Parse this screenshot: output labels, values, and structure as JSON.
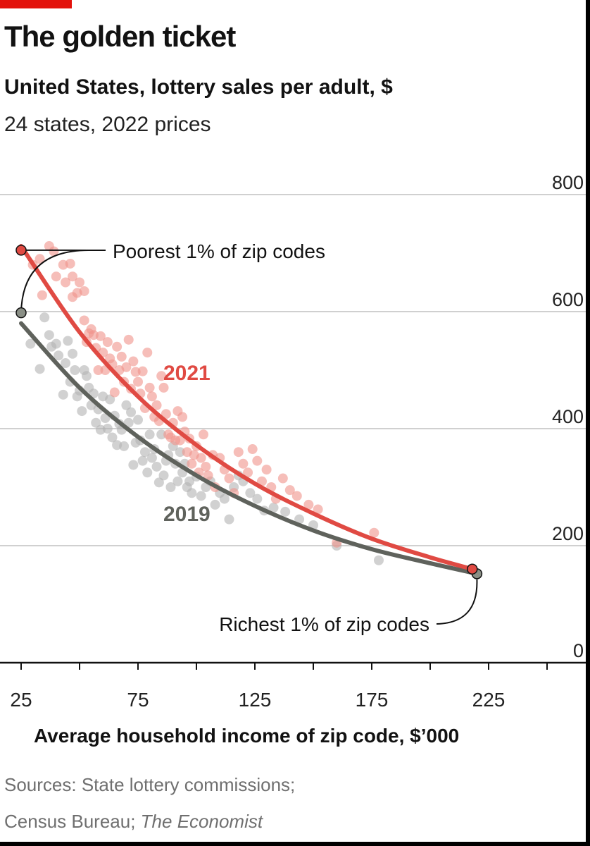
{
  "header": {
    "title": "The golden ticket",
    "subtitle": "United States, lottery sales per adult, $",
    "subsubtitle": "24 states, 2022 prices"
  },
  "footer": {
    "source_line1": "Sources: State lottery commissions;",
    "source_line2_prefix": "Census Bureau; ",
    "source_line2_italic": "The Economist"
  },
  "colors": {
    "accent": "#e3120b",
    "series_2021": "#e04a43",
    "series_2019": "#5f625c",
    "dots_2021": "#f0928b",
    "dots_2019": "#b3b3b3",
    "gridline": "#d0d0d0"
  },
  "chart_data": {
    "type": "scatter",
    "xlabel": "Average household income of zip code, $'000",
    "ylabel": "",
    "xlim": [
      25,
      250
    ],
    "ylim": [
      0,
      800
    ],
    "x_ticks": [
      25,
      75,
      125,
      175,
      225
    ],
    "y_ticks": [
      0,
      200,
      400,
      600,
      800
    ],
    "grid": "horizontal",
    "series": [
      {
        "name": "2021",
        "fit_curve": [
          [
            25,
            712
          ],
          [
            50,
            565
          ],
          [
            75,
            455
          ],
          [
            100,
            372
          ],
          [
            125,
            306
          ],
          [
            150,
            255
          ],
          [
            175,
            212
          ],
          [
            200,
            180
          ],
          [
            218,
            160
          ]
        ],
        "points": [
          [
            25,
            705
          ],
          [
            30,
            680
          ],
          [
            33,
            690
          ],
          [
            34,
            628
          ],
          [
            37,
            712
          ],
          [
            39,
            703
          ],
          [
            40,
            660
          ],
          [
            43,
            680
          ],
          [
            44,
            650
          ],
          [
            46,
            682
          ],
          [
            47,
            660
          ],
          [
            47,
            625
          ],
          [
            49,
            632
          ],
          [
            50,
            650
          ],
          [
            52,
            585
          ],
          [
            52,
            635
          ],
          [
            53,
            548
          ],
          [
            54,
            563
          ],
          [
            55,
            570
          ],
          [
            56,
            560
          ],
          [
            57,
            538
          ],
          [
            58,
            500
          ],
          [
            59,
            558
          ],
          [
            60,
            530
          ],
          [
            61,
            500
          ],
          [
            62,
            548
          ],
          [
            63,
            520
          ],
          [
            64,
            510
          ],
          [
            65,
            462
          ],
          [
            66,
            540
          ],
          [
            67,
            500
          ],
          [
            68,
            523
          ],
          [
            69,
            480
          ],
          [
            70,
            505
          ],
          [
            71,
            552
          ],
          [
            72,
            468
          ],
          [
            73,
            515
          ],
          [
            74,
            497
          ],
          [
            75,
            480
          ],
          [
            76,
            460
          ],
          [
            77,
            498
          ],
          [
            78,
            435
          ],
          [
            79,
            530
          ],
          [
            80,
            470
          ],
          [
            81,
            455
          ],
          [
            82,
            420
          ],
          [
            83,
            440
          ],
          [
            84,
            413
          ],
          [
            85,
            490
          ],
          [
            86,
            470
          ],
          [
            87,
            425
          ],
          [
            88,
            390
          ],
          [
            89,
            385
          ],
          [
            90,
            410
          ],
          [
            91,
            380
          ],
          [
            92,
            430
          ],
          [
            93,
            380
          ],
          [
            94,
            420
          ],
          [
            95,
            395
          ],
          [
            96,
            360
          ],
          [
            97,
            383
          ],
          [
            98,
            340
          ],
          [
            99,
            355
          ],
          [
            100,
            370
          ],
          [
            101,
            325
          ],
          [
            102,
            350
          ],
          [
            103,
            390
          ],
          [
            104,
            335
          ],
          [
            105,
            320
          ],
          [
            107,
            355
          ],
          [
            108,
            300
          ],
          [
            110,
            350
          ],
          [
            112,
            330
          ],
          [
            114,
            315
          ],
          [
            116,
            290
          ],
          [
            118,
            360
          ],
          [
            120,
            340
          ],
          [
            122,
            325
          ],
          [
            124,
            365
          ],
          [
            126,
            345
          ],
          [
            128,
            310
          ],
          [
            130,
            330
          ],
          [
            132,
            300
          ],
          [
            134,
            280
          ],
          [
            137,
            315
          ],
          [
            140,
            295
          ],
          [
            143,
            285
          ],
          [
            148,
            270
          ],
          [
            152,
            262
          ],
          [
            160,
            205
          ],
          [
            176,
            222
          ],
          [
            218,
            160
          ]
        ]
      },
      {
        "name": "2019",
        "fit_curve": [
          [
            25,
            580
          ],
          [
            50,
            470
          ],
          [
            75,
            386
          ],
          [
            100,
            320
          ],
          [
            125,
            268
          ],
          [
            150,
            226
          ],
          [
            175,
            194
          ],
          [
            200,
            170
          ],
          [
            220,
            152
          ]
        ],
        "points": [
          [
            25,
            598
          ],
          [
            29,
            545
          ],
          [
            33,
            502
          ],
          [
            35,
            590
          ],
          [
            37,
            560
          ],
          [
            38,
            540
          ],
          [
            40,
            545
          ],
          [
            41,
            525
          ],
          [
            43,
            458
          ],
          [
            44,
            512
          ],
          [
            45,
            550
          ],
          [
            46,
            480
          ],
          [
            47,
            528
          ],
          [
            48,
            500
          ],
          [
            49,
            455
          ],
          [
            50,
            465
          ],
          [
            51,
            430
          ],
          [
            52,
            500
          ],
          [
            53,
            490
          ],
          [
            54,
            470
          ],
          [
            55,
            440
          ],
          [
            56,
            460
          ],
          [
            57,
            410
          ],
          [
            58,
            433
          ],
          [
            59,
            398
          ],
          [
            60,
            455
          ],
          [
            61,
            418
          ],
          [
            62,
            400
          ],
          [
            63,
            450
          ],
          [
            64,
            385
          ],
          [
            65,
            422
          ],
          [
            66,
            372
          ],
          [
            67,
            408
          ],
          [
            68,
            398
          ],
          [
            69,
            370
          ],
          [
            70,
            440
          ],
          [
            71,
            410
          ],
          [
            72,
            428
          ],
          [
            73,
            338
          ],
          [
            74,
            376
          ],
          [
            75,
            415
          ],
          [
            76,
            380
          ],
          [
            77,
            345
          ],
          [
            78,
            360
          ],
          [
            79,
            325
          ],
          [
            80,
            390
          ],
          [
            81,
            350
          ],
          [
            82,
            365
          ],
          [
            83,
            335
          ],
          [
            84,
            308
          ],
          [
            85,
            390
          ],
          [
            86,
            320
          ],
          [
            87,
            345
          ],
          [
            88,
            355
          ],
          [
            89,
            300
          ],
          [
            90,
            370
          ],
          [
            91,
            340
          ],
          [
            92,
            310
          ],
          [
            93,
            360
          ],
          [
            94,
            325
          ],
          [
            95,
            340
          ],
          [
            96,
            300
          ],
          [
            97,
            310
          ],
          [
            98,
            290
          ],
          [
            100,
            318
          ],
          [
            102,
            285
          ],
          [
            104,
            300
          ],
          [
            106,
            310
          ],
          [
            108,
            270
          ],
          [
            110,
            290
          ],
          [
            112,
            280
          ],
          [
            114,
            245
          ],
          [
            116,
            300
          ],
          [
            118,
            320
          ],
          [
            120,
            310
          ],
          [
            123,
            290
          ],
          [
            126,
            280
          ],
          [
            129,
            260
          ],
          [
            133,
            265
          ],
          [
            138,
            258
          ],
          [
            144,
            245
          ],
          [
            150,
            235
          ],
          [
            160,
            200
          ],
          [
            178,
            175
          ],
          [
            220,
            152
          ]
        ]
      }
    ],
    "annotations": {
      "poorest": "Poorest 1% of zip codes",
      "richest": "Richest 1% of zip codes",
      "label_2021": "2021",
      "label_2019": "2019"
    }
  }
}
